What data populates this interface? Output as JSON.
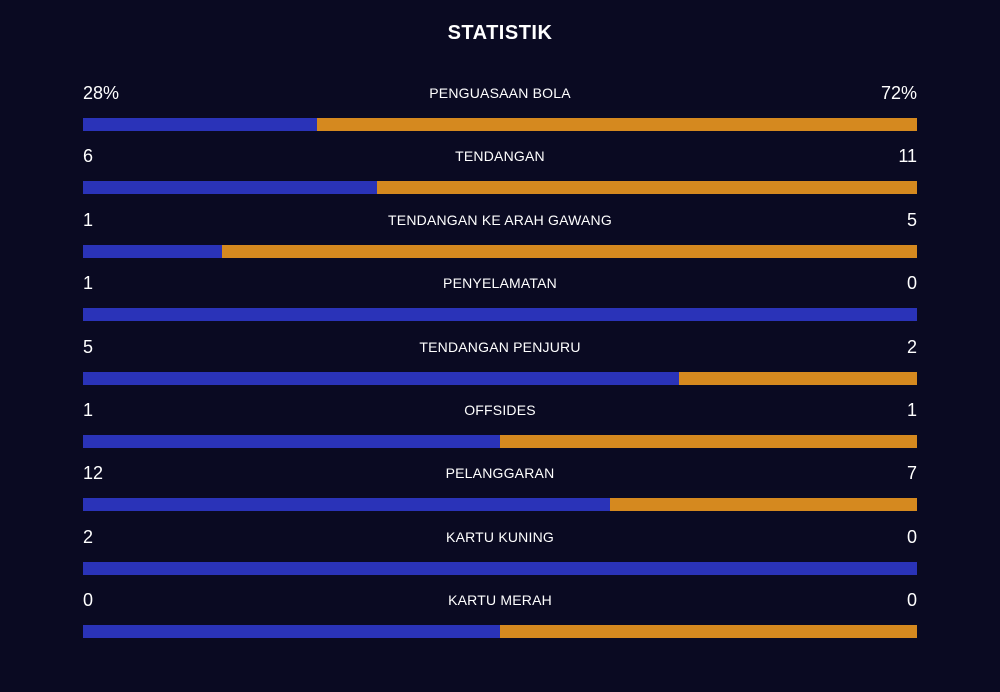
{
  "header": {
    "title": "STATISTIK"
  },
  "colors": {
    "background": "#0a0a22",
    "home": "#2a33b8",
    "away": "#d5891f"
  },
  "stats": [
    {
      "label": "PENGUASAAN BOLA",
      "home": "28%",
      "away": "72%",
      "home_share": 0.28
    },
    {
      "label": "TENDANGAN",
      "home": "6",
      "away": "11",
      "home_share": 0.3529
    },
    {
      "label": "TENDANGAN KE ARAH GAWANG",
      "home": "1",
      "away": "5",
      "home_share": 0.1667
    },
    {
      "label": "PENYELAMATAN",
      "home": "1",
      "away": "0",
      "home_share": 1.0
    },
    {
      "label": "TENDANGAN PENJURU",
      "home": "5",
      "away": "2",
      "home_share": 0.7143
    },
    {
      "label": "OFFSIDES",
      "home": "1",
      "away": "1",
      "home_share": 0.5
    },
    {
      "label": "PELANGGARAN",
      "home": "12",
      "away": "7",
      "home_share": 0.6316
    },
    {
      "label": "KARTU KUNING",
      "home": "2",
      "away": "0",
      "home_share": 1.0
    },
    {
      "label": "KARTU MERAH",
      "home": "0",
      "away": "0",
      "home_share": 0.5
    }
  ]
}
